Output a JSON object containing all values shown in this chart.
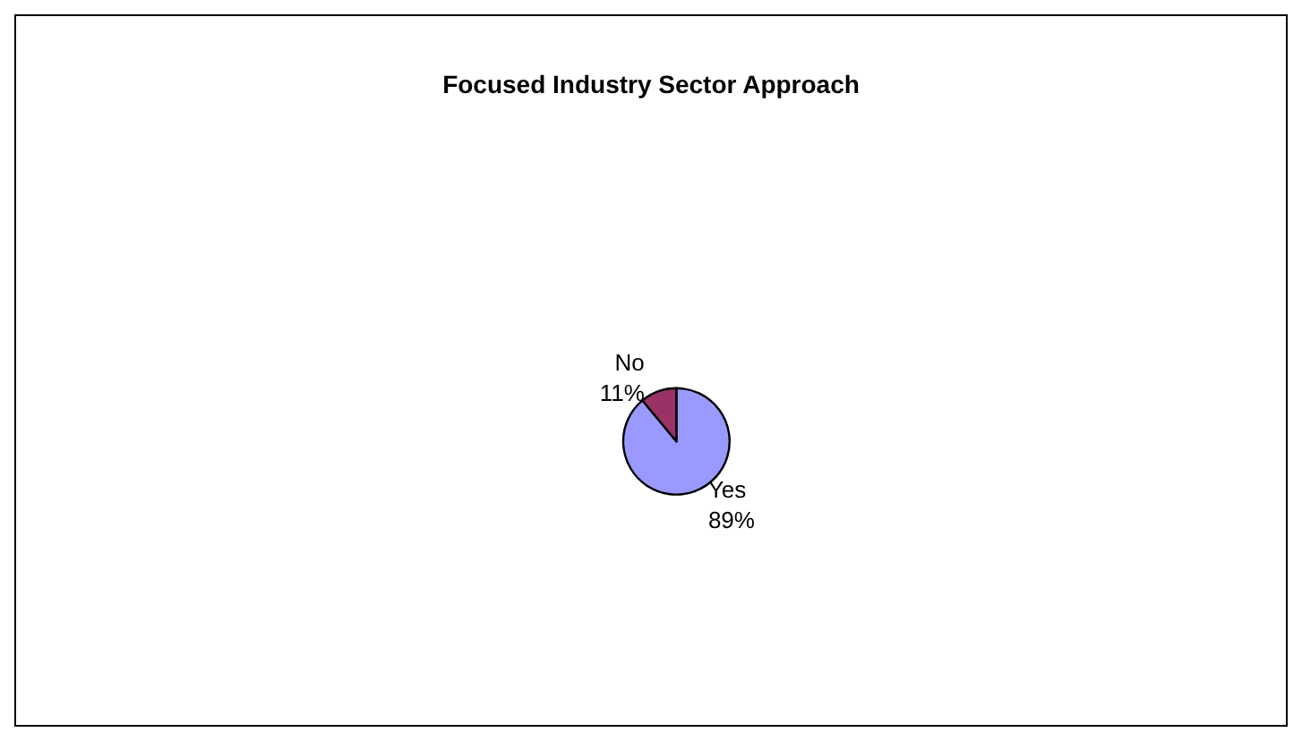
{
  "chart_data": {
    "type": "pie",
    "title": "Focused Industry Sector Approach",
    "categories": [
      "Yes",
      "No"
    ],
    "values": [
      89,
      11
    ],
    "value_labels": [
      "89%",
      "11%"
    ],
    "colors": [
      "#9999ff",
      "#993366"
    ]
  }
}
